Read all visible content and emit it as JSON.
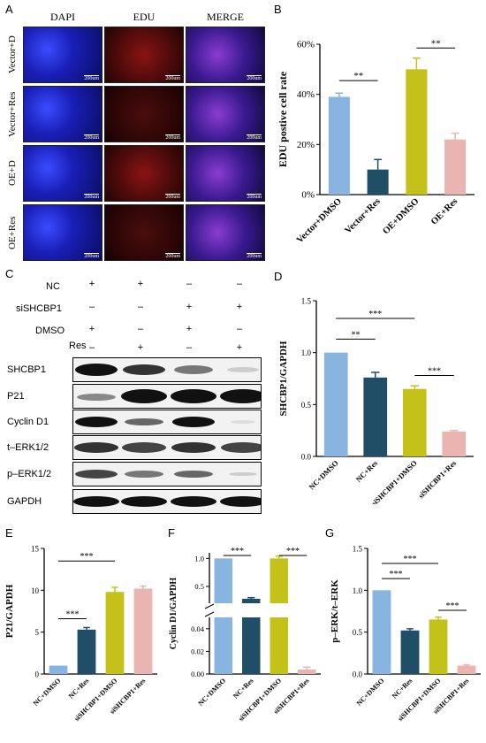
{
  "panels": {
    "A": "A",
    "B": "B",
    "C": "C",
    "D": "D",
    "E": "E",
    "F": "F",
    "G": "G"
  },
  "panelA": {
    "columns": [
      "DAPI",
      "EDU",
      "MERGE"
    ],
    "rows": [
      "Vector+D",
      "Vector+Res",
      "OE+D",
      "OE+Res"
    ],
    "scale": "200um"
  },
  "panelC": {
    "conditions": [
      {
        "label": "NC",
        "marks": [
          "+",
          "+",
          "–",
          "–"
        ]
      },
      {
        "label": "siSHCBP1",
        "marks": [
          "–",
          "–",
          "+",
          "+"
        ]
      },
      {
        "label": "DMSO",
        "marks": [
          "+",
          "–",
          "+",
          "–"
        ]
      },
      {
        "label": "Res",
        "marks": [
          "–",
          "+",
          "–",
          "+"
        ]
      }
    ],
    "blots": [
      "SHCBP1",
      "P21",
      "Cyclin D1",
      "t–ERK1/2",
      "p–ERK1/2",
      "GAPDH"
    ]
  },
  "chart_data": [
    {
      "panel": "B",
      "type": "bar",
      "categories": [
        "Vector+DMSO",
        "Vector+Res",
        "OE+DMSO",
        "OE+Res"
      ],
      "values": [
        0.39,
        0.1,
        0.5,
        0.22
      ],
      "errors": [
        0.015,
        0.04,
        0.045,
        0.025
      ],
      "ylabel": "EDU postive cell rate",
      "yticks": [
        "0%",
        "20%",
        "40%",
        "60%"
      ],
      "ylim": [
        0,
        0.6
      ],
      "colors": [
        "#8ab4e0",
        "#1f4e66",
        "#c4c21a",
        "#e8b5b0"
      ],
      "sig": [
        {
          "label": "**"
        },
        {
          "label": "**"
        }
      ]
    },
    {
      "panel": "D",
      "type": "bar",
      "categories": [
        "NC+DMSO",
        "NC+Res",
        "siSHCBP1+DMSO",
        "siSHCBP1+Res"
      ],
      "values": [
        1.0,
        0.76,
        0.65,
        0.24
      ],
      "errors": [
        0,
        0.05,
        0.03,
        0.01
      ],
      "ylabel": "SHCBP1/GAPDH",
      "yticks": [
        "0.0",
        "0.5",
        "1.0",
        "1.5"
      ],
      "ylim": [
        0,
        1.5
      ],
      "colors": [
        "#8ab4e0",
        "#1f4e66",
        "#c4c21a",
        "#e8b5b0"
      ],
      "sig": [
        {
          "label": "***"
        },
        {
          "label": "**"
        },
        {
          "label": "***"
        }
      ]
    },
    {
      "panel": "E",
      "type": "bar",
      "categories": [
        "NC+DMSO",
        "NC+Res",
        "siSHCBP1+DMSO",
        "siSHCBP1+Res"
      ],
      "values": [
        1.0,
        5.3,
        9.8,
        10.2
      ],
      "errors": [
        0,
        0.25,
        0.55,
        0.3
      ],
      "ylabel": "P21/GAPDH",
      "yticks": [
        "0",
        "5",
        "10",
        "15"
      ],
      "ylim": [
        0,
        15
      ],
      "colors": [
        "#8ab4e0",
        "#1f4e66",
        "#c4c21a",
        "#e8b5b0"
      ],
      "sig": [
        {
          "label": "***"
        },
        {
          "label": "***"
        }
      ]
    },
    {
      "panel": "F",
      "type": "bar",
      "categories": [
        "NC+DMSO",
        "NC+Res",
        "siSHCBP1+DMSO",
        "siSHCBP1+Res"
      ],
      "values": [
        1.0,
        0.28,
        1.0,
        0.004
      ],
      "errors": [
        0,
        0.02,
        0.04,
        0.002
      ],
      "ylabel": "Cyclin D1/GAPDH",
      "yticks_lower": [
        "0.00",
        "0.02",
        "0.04"
      ],
      "yticks_upper": [
        "0.5",
        "1.0"
      ],
      "ylim_lower": [
        0,
        0.05
      ],
      "ylim_upper": [
        0.2,
        1.1
      ],
      "colors": [
        "#8ab4e0",
        "#1f4e66",
        "#c4c21a",
        "#e8b5b0"
      ],
      "sig": [
        {
          "label": "***"
        },
        {
          "label": "***"
        }
      ]
    },
    {
      "panel": "G",
      "type": "bar",
      "categories": [
        "NC+DMSO",
        "NC+Res",
        "siSHCBP1+DMSO",
        "siSHCBP1+Res"
      ],
      "values": [
        1.0,
        0.52,
        0.65,
        0.1
      ],
      "errors": [
        0,
        0.02,
        0.03,
        0.01
      ],
      "ylabel": "p–ERK/t–ERK",
      "yticks": [
        "0.0",
        "0.5",
        "1.0",
        "1.5"
      ],
      "ylim": [
        0,
        1.5
      ],
      "colors": [
        "#8ab4e0",
        "#1f4e66",
        "#c4c21a",
        "#e8b5b0"
      ],
      "sig": [
        {
          "label": "***"
        },
        {
          "label": "***"
        },
        {
          "label": "***"
        }
      ]
    }
  ]
}
